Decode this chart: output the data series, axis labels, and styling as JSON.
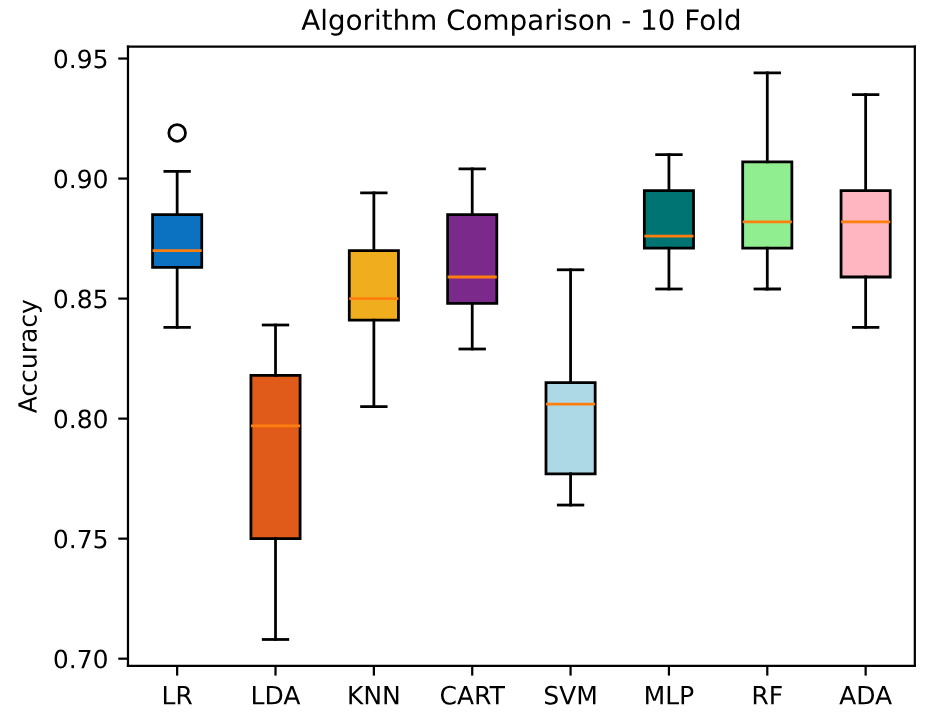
{
  "chart_data": {
    "type": "box",
    "title": "Algorithm Comparison - 10 Fold",
    "ylabel": "Accuracy",
    "categories": [
      "LR",
      "LDA",
      "KNN",
      "CART",
      "SVM",
      "MLP",
      "RF",
      "ADA"
    ],
    "colors": [
      "#0b72c2",
      "#e05a1a",
      "#f0ae1e",
      "#7b2a8c",
      "#add8e6",
      "#007373",
      "#90ee90",
      "#ffb6c1"
    ],
    "boxes": [
      {
        "low": 0.838,
        "q1": 0.863,
        "median": 0.87,
        "q3": 0.885,
        "high": 0.903,
        "outliers": [
          0.919
        ]
      },
      {
        "low": 0.708,
        "q1": 0.75,
        "median": 0.797,
        "q3": 0.818,
        "high": 0.839
      },
      {
        "low": 0.805,
        "q1": 0.841,
        "median": 0.85,
        "q3": 0.87,
        "high": 0.894
      },
      {
        "low": 0.829,
        "q1": 0.848,
        "median": 0.859,
        "q3": 0.885,
        "high": 0.904
      },
      {
        "low": 0.764,
        "q1": 0.777,
        "median": 0.806,
        "q3": 0.815,
        "high": 0.862
      },
      {
        "low": 0.854,
        "q1": 0.871,
        "median": 0.876,
        "q3": 0.895,
        "high": 0.91
      },
      {
        "low": 0.854,
        "q1": 0.871,
        "median": 0.882,
        "q3": 0.907,
        "high": 0.944
      },
      {
        "low": 0.838,
        "q1": 0.859,
        "median": 0.882,
        "q3": 0.895,
        "high": 0.935
      }
    ],
    "ylim": [
      0.697,
      0.955
    ],
    "yticks": [
      {
        "value": 0.7,
        "label": "0.70"
      },
      0.75,
      {
        "value": 0.8,
        "label": "0.80"
      },
      0.85,
      {
        "value": 0.9,
        "label": "0.90"
      },
      0.95
    ],
    "grid": false
  }
}
